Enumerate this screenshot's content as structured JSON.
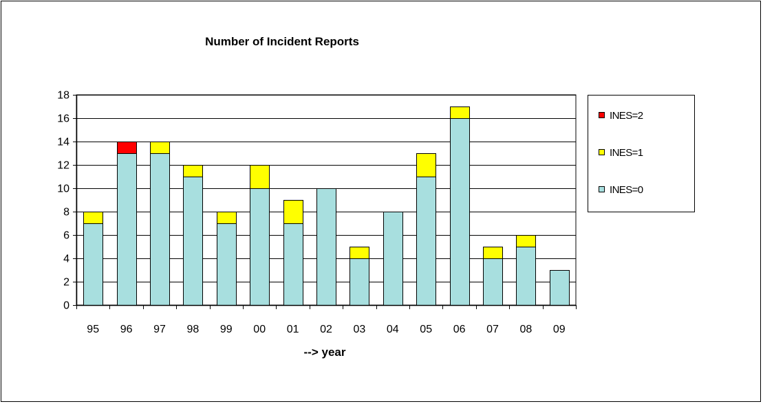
{
  "chart_data": {
    "type": "bar",
    "stacked": true,
    "title": "Number of Incident Reports",
    "xlabel": "--> year",
    "ylabel": "",
    "ylim": [
      0,
      18
    ],
    "yticks": [
      0,
      2,
      4,
      6,
      8,
      10,
      12,
      14,
      16,
      18
    ],
    "grid": true,
    "legend_position": "right",
    "categories": [
      "95",
      "96",
      "97",
      "98",
      "99",
      "00",
      "01",
      "02",
      "03",
      "04",
      "05",
      "06",
      "07",
      "08",
      "09"
    ],
    "series": [
      {
        "name": "INES=0",
        "color": "#a8dfdf",
        "values": [
          7,
          13,
          13,
          11,
          7,
          10,
          7,
          10,
          4,
          8,
          11,
          16,
          4,
          5,
          3
        ]
      },
      {
        "name": "INES=1",
        "color": "#ffff00",
        "values": [
          1,
          0,
          1,
          1,
          1,
          2,
          2,
          0,
          1,
          0,
          2,
          1,
          1,
          1,
          0
        ]
      },
      {
        "name": "INES=2",
        "color": "#ff0000",
        "values": [
          0,
          1,
          0,
          0,
          0,
          0,
          0,
          0,
          0,
          0,
          0,
          0,
          0,
          0,
          0
        ]
      }
    ],
    "legend_order": [
      "INES=2",
      "INES=1",
      "INES=0"
    ]
  }
}
